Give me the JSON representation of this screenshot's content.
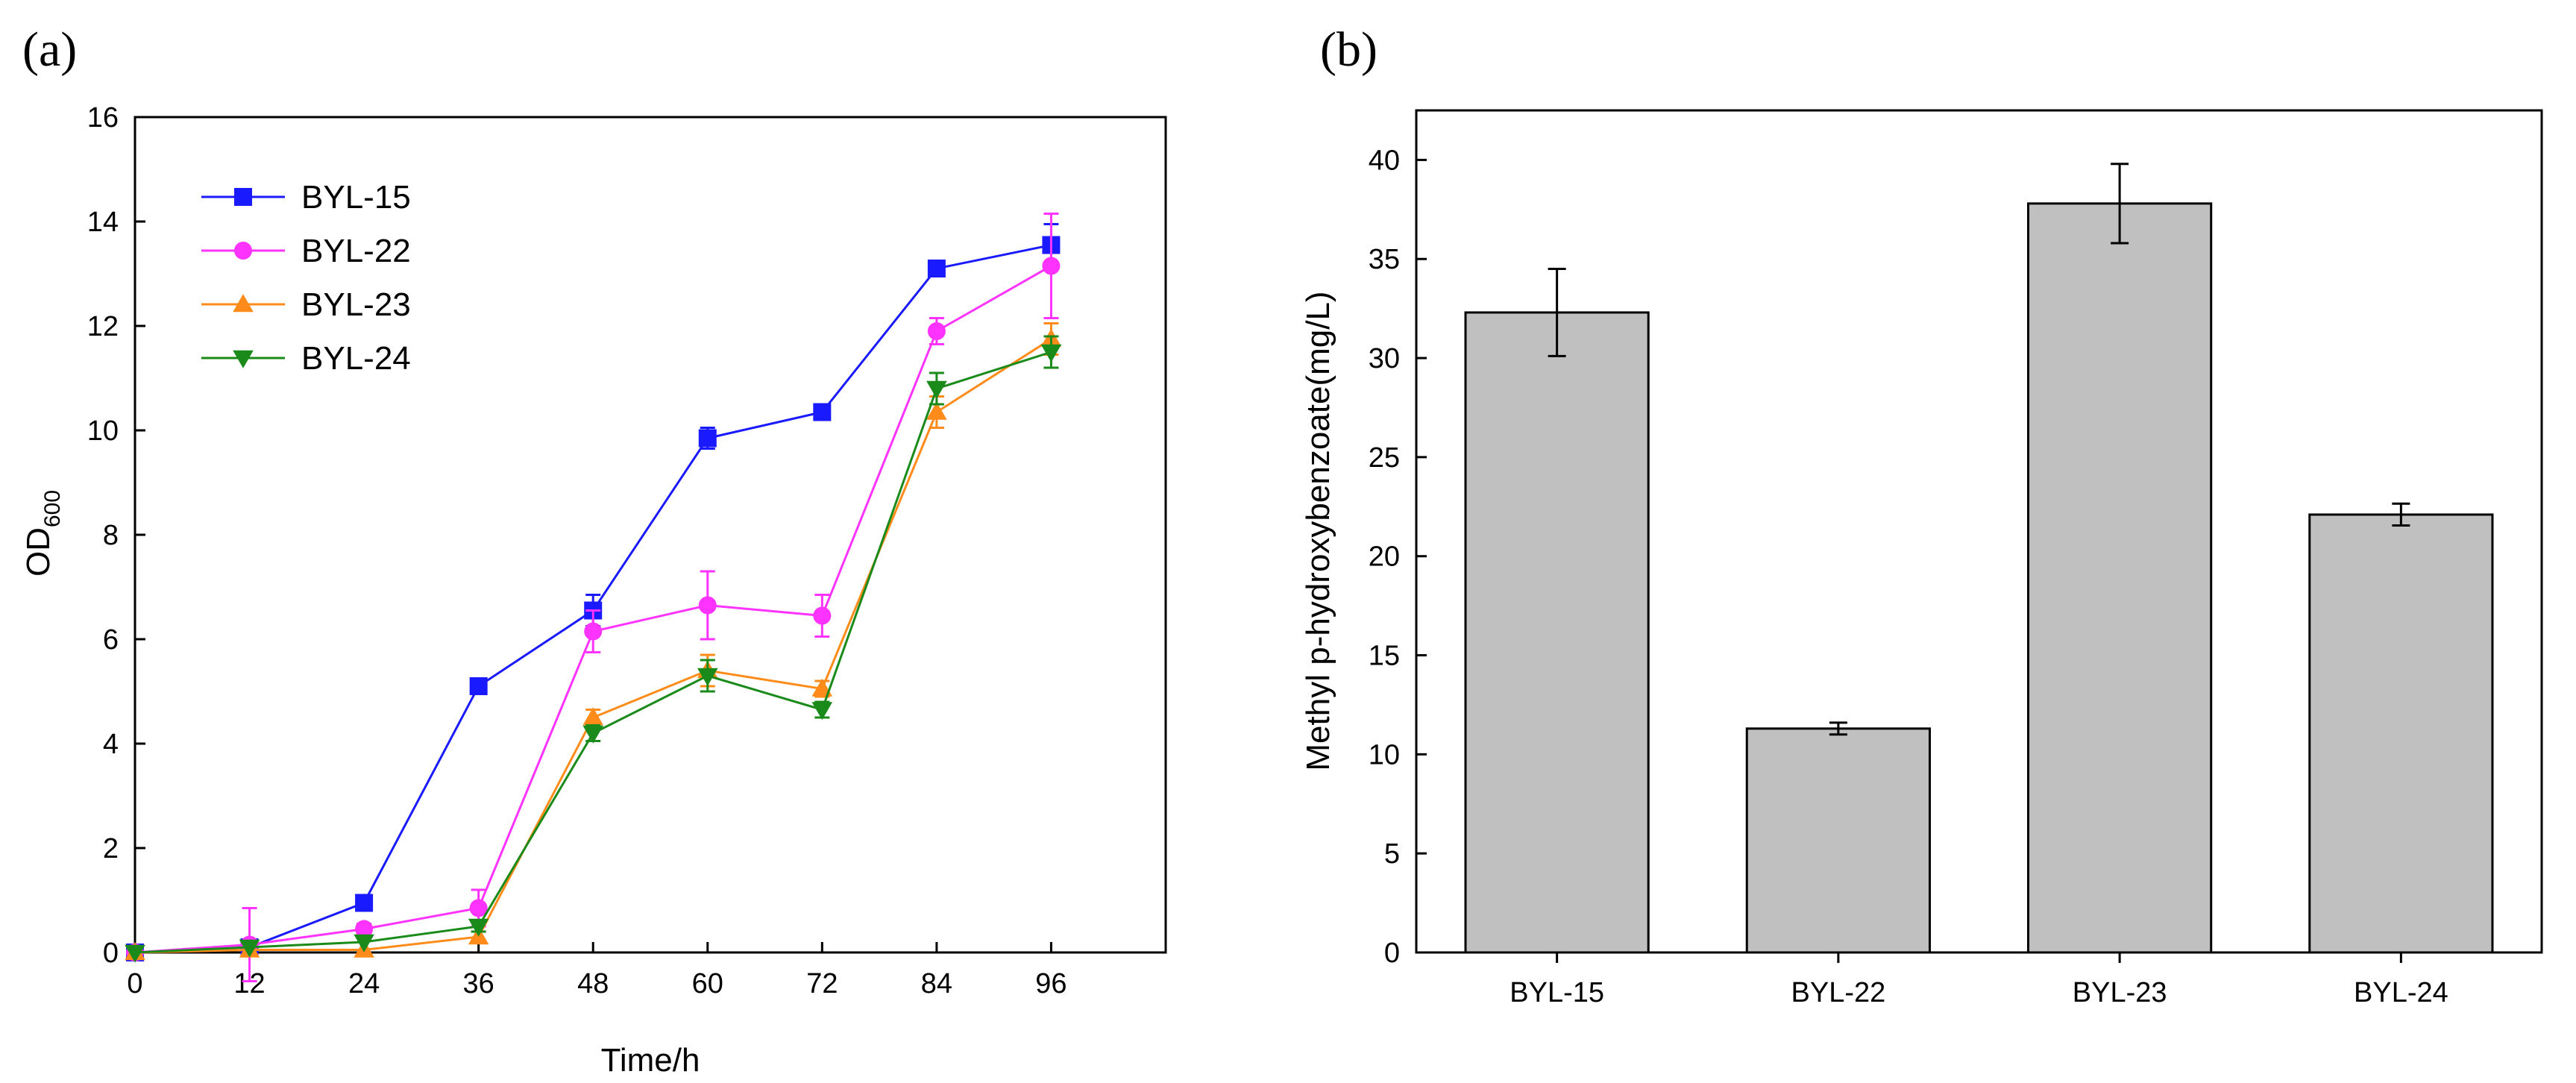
{
  "chart_data": [
    {
      "type": "line",
      "panel_label": "(a)",
      "xlabel": "Time/h",
      "ylabel_main": "OD",
      "ylabel_sub": "600",
      "x": [
        0,
        12,
        24,
        36,
        48,
        60,
        72,
        84,
        96
      ],
      "xlim": [
        0,
        108
      ],
      "ylim": [
        0,
        16
      ],
      "xticks": [
        0,
        12,
        24,
        36,
        48,
        60,
        72,
        84,
        96
      ],
      "yticks": [
        0,
        2,
        4,
        6,
        8,
        10,
        12,
        14,
        16
      ],
      "legend_position": "top-left",
      "series": [
        {
          "name": "BYL-15",
          "color": "#1a1aff",
          "marker": "square",
          "values": [
            0.0,
            0.1,
            0.95,
            5.1,
            6.55,
            9.85,
            10.35,
            13.1,
            13.55
          ],
          "errors": [
            0.05,
            0.05,
            0.1,
            0.1,
            0.3,
            0.2,
            0.1,
            0.15,
            0.4
          ]
        },
        {
          "name": "BYL-22",
          "color": "#ff33ff",
          "marker": "circle",
          "values": [
            0.0,
            0.15,
            0.45,
            0.85,
            6.15,
            6.65,
            6.45,
            11.9,
            13.15
          ],
          "errors": [
            0.05,
            0.7,
            0.1,
            0.35,
            0.4,
            0.65,
            0.4,
            0.25,
            1.0
          ]
        },
        {
          "name": "BYL-23",
          "color": "#ff8c1a",
          "marker": "triangle-up",
          "values": [
            0.0,
            0.05,
            0.05,
            0.3,
            4.5,
            5.4,
            5.05,
            10.35,
            11.75
          ],
          "errors": [
            0.05,
            0.05,
            0.05,
            0.1,
            0.15,
            0.3,
            0.15,
            0.3,
            0.3
          ]
        },
        {
          "name": "BYL-24",
          "color": "#1a8a1a",
          "marker": "triangle-down",
          "values": [
            0.0,
            0.1,
            0.2,
            0.5,
            4.2,
            5.3,
            4.65,
            10.8,
            11.5
          ],
          "errors": [
            0.05,
            0.05,
            0.05,
            0.1,
            0.15,
            0.3,
            0.15,
            0.3,
            0.3
          ]
        }
      ]
    },
    {
      "type": "bar",
      "panel_label": "(b)",
      "xlabel": "",
      "ylabel": "Methyl p-hydroxybenzoate(mg/L)",
      "categories": [
        "BYL-15",
        "BYL-22",
        "BYL-23",
        "BYL-24"
      ],
      "values": [
        32.3,
        11.3,
        37.8,
        22.1
      ],
      "errors": [
        2.2,
        0.3,
        2.0,
        0.55
      ],
      "ylim": [
        0,
        42.5
      ],
      "yticks": [
        0,
        5,
        10,
        15,
        20,
        25,
        30,
        35,
        40
      ],
      "bar_color": "#c0c0c0"
    }
  ]
}
